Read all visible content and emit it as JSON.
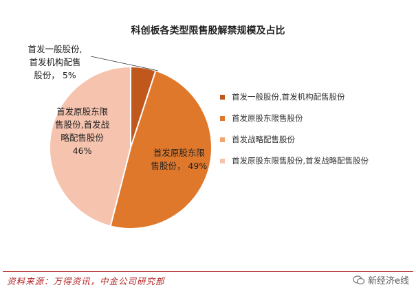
{
  "chart_data": {
    "type": "pie",
    "title": "科创板各类型限售股解禁规模及占比",
    "slices": [
      {
        "name": "首发一般股份,首发机构配售股份",
        "value": 5,
        "label": "5%",
        "color": "#c0581e"
      },
      {
        "name": "首发原股东限售股份",
        "value": 49,
        "label": "49%",
        "color": "#e0782c"
      },
      {
        "name": "首发战略配售股份",
        "value": 0,
        "label": "",
        "color": "#f2a66c"
      },
      {
        "name": "首发原股东限售股份,首发战略配售股份",
        "value": 46,
        "label": "46%",
        "color": "#f5c3ae"
      }
    ],
    "slice_labels": [
      {
        "lines": [
          "首发一般股份,",
          "首发机构配售",
          "股份， 5%"
        ]
      },
      {
        "lines": [
          "首发原股东限",
          "售股份， 49%"
        ]
      },
      {
        "lines": [
          ""
        ]
      },
      {
        "lines": [
          "首发原股东限",
          "售股份,首发战",
          "略配售股份",
          "46%"
        ]
      }
    ],
    "legend": {
      "position": "right",
      "items": [
        {
          "label": "首发一般股份,首发机构配售股份",
          "color": "#c0581e"
        },
        {
          "label": "首发原股东限售股份",
          "color": "#e0782c"
        },
        {
          "label": "首发战略配售股份",
          "color": "#f2a66c"
        },
        {
          "label": "首发原股东限售股份,首发战略配售股份",
          "color": "#f5c3ae"
        }
      ]
    }
  },
  "footer": {
    "source": "资料来源：万得资讯，中金公司研究部",
    "watermark": "新经济e线"
  }
}
